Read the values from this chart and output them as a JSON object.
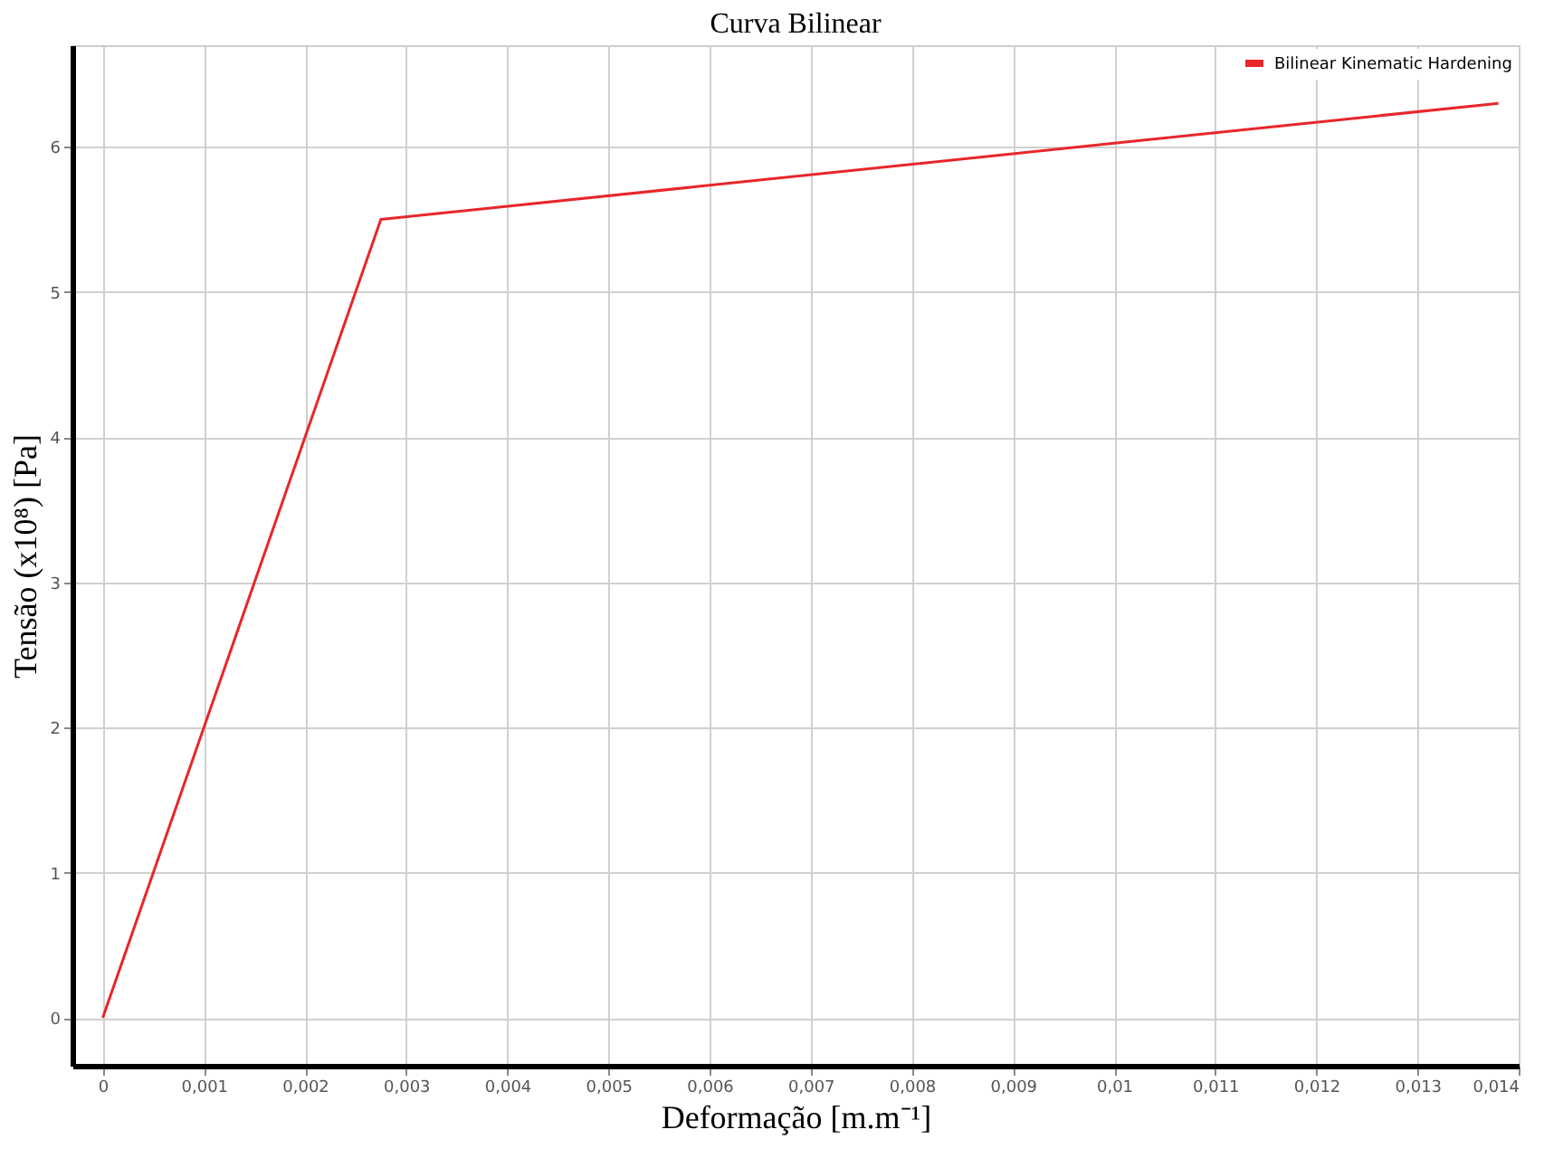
{
  "chart_data": {
    "type": "line",
    "title": "Curva Bilinear",
    "xlabel": "Deformação [m.m⁻¹]",
    "ylabel": "Tensão (x10⁸) [Pa]",
    "x": [
      0,
      0.00275,
      0.0138
    ],
    "series": [
      {
        "name": "Bilinear Kinematic Hardening",
        "color": "#e8262b",
        "values": [
          0,
          5.5,
          6.3
        ]
      }
    ],
    "xlim": [
      -0.0003,
      0.014
    ],
    "ylim": [
      -0.33,
      6.7
    ],
    "xticks": [
      0,
      {
        "value": 0.001,
        "label": "0,001"
      },
      {
        "value": 0.002,
        "label": "0,002"
      },
      {
        "value": 0.003,
        "label": "0,003"
      },
      {
        "value": 0.004,
        "label": "0,004"
      },
      {
        "value": 0.005,
        "label": "0,005"
      },
      {
        "value": 0.006,
        "label": "0,006"
      },
      {
        "value": 0.007,
        "label": "0,007"
      },
      {
        "value": 0.008,
        "label": "0,008"
      },
      {
        "value": 0.009,
        "label": "0,009"
      },
      {
        "value": 0.01,
        "label": "0,01"
      },
      {
        "value": 0.011,
        "label": "0,011"
      },
      {
        "value": 0.012,
        "label": "0,012"
      },
      {
        "value": 0.013,
        "label": "0,013"
      },
      {
        "value": 0.014,
        "label": "0,014"
      }
    ],
    "yticks": [
      0,
      1,
      2,
      3,
      4,
      5,
      6
    ],
    "grid": true,
    "legend": "top right",
    "marker": "none",
    "line_style": "solid"
  }
}
